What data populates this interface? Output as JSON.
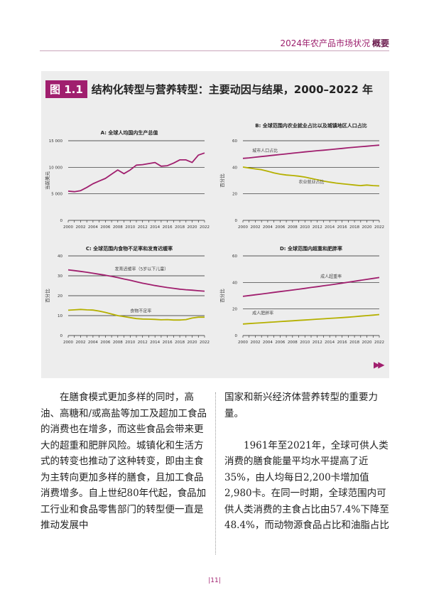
{
  "header": {
    "title": "2024年农产品市场状况",
    "bold": "概要"
  },
  "figure": {
    "badge": "图 1.1",
    "title": "结构化转型与营养转型：主要动因与结果，2000–2022 年"
  },
  "chart_data": [
    {
      "type": "line",
      "title": "A: 全球人均国内生产总值",
      "ylabel": "当前美元",
      "ylim": [
        0,
        15000
      ],
      "yticks": [
        0,
        5000,
        10000,
        15000
      ],
      "ytick_labels": [
        "0",
        "5 000",
        "10 000",
        "15 000"
      ],
      "x": [
        2000,
        2001,
        2002,
        2003,
        2004,
        2005,
        2006,
        2007,
        2008,
        2009,
        2010,
        2011,
        2012,
        2013,
        2014,
        2015,
        2016,
        2017,
        2018,
        2019,
        2020,
        2021,
        2022
      ],
      "series": [
        {
          "color": "#a01f6e",
          "values": [
            5500,
            5400,
            5600,
            6200,
            6900,
            7400,
            7900,
            8700,
            9500,
            8800,
            9500,
            10400,
            10500,
            10700,
            10900,
            10200,
            10300,
            10800,
            11400,
            11400,
            10900,
            12300,
            12700
          ]
        }
      ],
      "labels": []
    },
    {
      "type": "line",
      "title": "B: 全球范围内农业就业占比以及城镇地区人口占比",
      "ylabel": "百分比",
      "ylim": [
        0,
        60
      ],
      "yticks": [
        0,
        20,
        40,
        60
      ],
      "ytick_labels": [
        "0",
        "20",
        "40",
        "60"
      ],
      "x": [
        2000,
        2001,
        2002,
        2003,
        2004,
        2005,
        2006,
        2007,
        2008,
        2009,
        2010,
        2011,
        2012,
        2013,
        2014,
        2015,
        2016,
        2017,
        2018,
        2019,
        2020,
        2021,
        2022
      ],
      "series": [
        {
          "color": "#a01f6e",
          "values": [
            46.7,
            47.1,
            47.6,
            48.1,
            48.6,
            49.1,
            49.6,
            50.1,
            50.6,
            51.1,
            51.6,
            52.0,
            52.5,
            52.9,
            53.3,
            53.8,
            54.2,
            54.7,
            55.1,
            55.5,
            55.9,
            56.3,
            56.7
          ]
        },
        {
          "color": "#b5b000",
          "values": [
            40.2,
            39.5,
            38.8,
            38.2,
            37.0,
            35.8,
            34.8,
            34.2,
            33.8,
            33.3,
            32.6,
            31.6,
            30.6,
            29.6,
            28.8,
            28.1,
            27.6,
            27.1,
            26.6,
            26.2,
            26.6,
            26.2,
            26.0
          ]
        }
      ],
      "labels": [
        {
          "text": "城市人口占比",
          "x": 2001.5,
          "y": 51.5
        },
        {
          "text": "农业就业占比",
          "x": 2009,
          "y": 27.8
        }
      ]
    },
    {
      "type": "line",
      "title": "C: 全球范围内食物不足率和发育迟缓率",
      "ylabel": "百分比",
      "ylim": [
        0,
        40
      ],
      "yticks": [
        0,
        10,
        20,
        30,
        40
      ],
      "ytick_labels": [
        "0",
        "10",
        "20",
        "30",
        "40"
      ],
      "x": [
        2000,
        2001,
        2002,
        2003,
        2004,
        2005,
        2006,
        2007,
        2008,
        2009,
        2010,
        2011,
        2012,
        2013,
        2014,
        2015,
        2016,
        2017,
        2018,
        2019,
        2020,
        2021,
        2022
      ],
      "series": [
        {
          "color": "#a01f6e",
          "values": [
            33.0,
            32.6,
            32.2,
            31.8,
            31.3,
            30.8,
            30.3,
            29.7,
            29.1,
            28.4,
            27.8,
            27.0,
            26.3,
            25.7,
            25.1,
            24.6,
            24.1,
            23.7,
            23.3,
            23.0,
            22.8,
            22.5,
            22.3
          ]
        },
        {
          "color": "#b5b000",
          "values": [
            12.7,
            12.9,
            13.1,
            12.9,
            12.8,
            12.3,
            11.6,
            10.8,
            10.0,
            9.5,
            9.0,
            8.5,
            8.3,
            8.2,
            8.1,
            7.9,
            8.0,
            7.8,
            7.8,
            8.0,
            8.8,
            9.2,
            9.2
          ]
        }
      ],
      "labels": [
        {
          "text": "发育迟缓率（5岁以下儿童）",
          "x": 2007.5,
          "y": 32.6
        },
        {
          "text": "食物不足率",
          "x": 2010,
          "y": 11.6
        }
      ]
    },
    {
      "type": "line",
      "title": "D: 全球范围内超重和肥胖率",
      "ylabel": "百分比",
      "ylim": [
        0,
        60
      ],
      "yticks": [
        0,
        20,
        40,
        60
      ],
      "ytick_labels": [
        "0",
        "20",
        "40",
        "60"
      ],
      "x": [
        2000,
        2001,
        2002,
        2003,
        2004,
        2005,
        2006,
        2007,
        2008,
        2009,
        2010,
        2011,
        2012,
        2013,
        2014,
        2015,
        2016,
        2017,
        2018,
        2019,
        2020,
        2021,
        2022
      ],
      "series": [
        {
          "color": "#a01f6e",
          "values": [
            29.5,
            30.1,
            30.7,
            31.3,
            31.9,
            32.5,
            33.1,
            33.7,
            34.3,
            34.9,
            35.5,
            36.2,
            36.8,
            37.5,
            38.1,
            38.8,
            39.5,
            40.2,
            40.9,
            41.6,
            42.3,
            43.0,
            43.7
          ]
        },
        {
          "color": "#b5b000",
          "values": [
            8.7,
            9.0,
            9.3,
            9.6,
            9.9,
            10.2,
            10.5,
            10.8,
            11.1,
            11.4,
            11.7,
            12.0,
            12.3,
            12.6,
            12.9,
            13.2,
            13.5,
            13.8,
            14.2,
            14.6,
            15.0,
            15.4,
            15.8
          ]
        }
      ],
      "labels": [
        {
          "text": "成人超重率",
          "x": 2012.5,
          "y": 43.5
        },
        {
          "text": "成人肥胖率",
          "x": 2001.5,
          "y": 15.8
        }
      ]
    }
  ],
  "arrow": "▶▶",
  "text_left": "在膳食模式更加多样的同时，高油、高糖和/或高盐等加工及超加工食品的消费也在增多，而这些食品会带来更大的超重和肥胖风险。城镇化和生活方式的转变也推动了这种转变，即由主食为主转向更加多样的膳食，且加工食品消费增多。自上世纪80年代起，食品加工行业和食品零售部门的转型便一直是推动发展中",
  "text_right_1": "国家和新兴经济体营养转型的重要力量。",
  "text_right_2": "1961年至2021年，全球可供人类消费的膳食能量平均水平提高了近35%，由人均每日2,200卡增加值2,980卡。在同一时期，全球范围内可供人类消费的主食占比由57.4%下降至48.4%，而动物源食品占比和油脂占比",
  "page_number": "|11|"
}
